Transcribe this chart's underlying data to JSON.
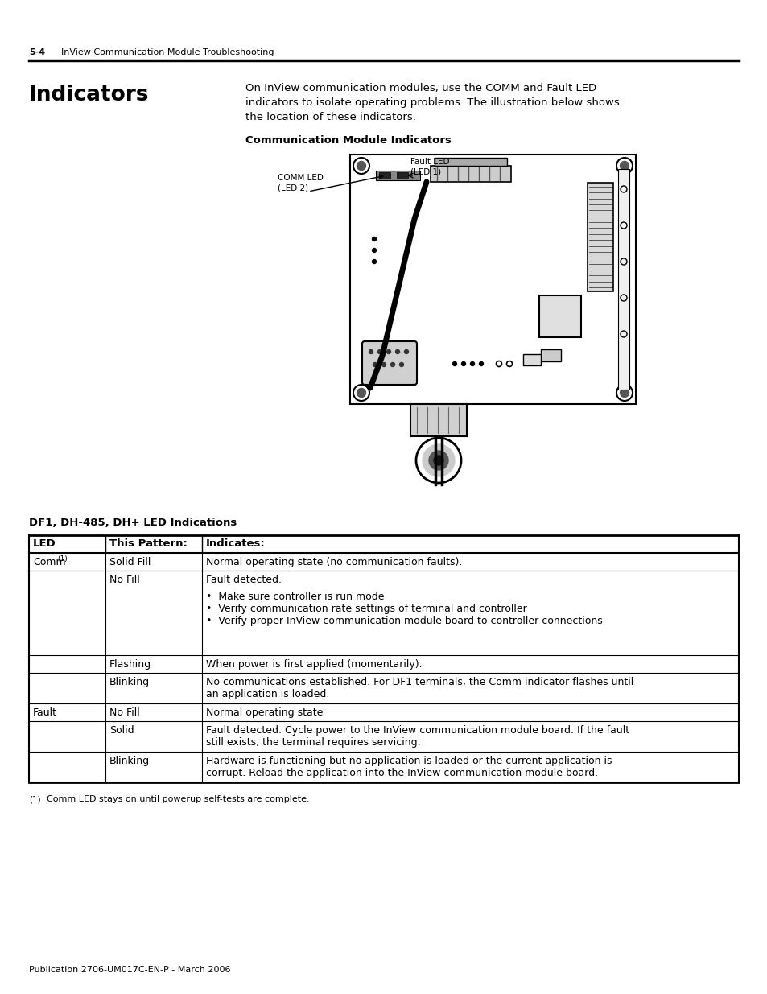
{
  "page_header_num": "5-4",
  "page_header_text": "InView Communication Module Troubleshooting",
  "section_title": "Indicators",
  "body_line1": "On InView communication modules, use the COMM and Fault LED",
  "body_line2": "indicators to isolate operating problems. The illustration below shows",
  "body_line3": "the location of these indicators.",
  "diagram_title": "Communication Module Indicators",
  "comm_led_line1": "COMM LED",
  "comm_led_line2": "(LED 2)",
  "fault_led_line1": "Fault LED",
  "fault_led_line2": "(LED 1)",
  "table_section_title": "DF1, DH-485, DH+ LED Indications",
  "table_headers": [
    "LED",
    "This Pattern:",
    "Indicates:"
  ],
  "footnote_num": "(1)",
  "footnote_body": "Comm LED stays on until powerup self-tests are complete.",
  "footer_text": "Publication 2706-UM017C-EN-P - March 2006",
  "bg_color": "#ffffff",
  "text_color": "#000000"
}
